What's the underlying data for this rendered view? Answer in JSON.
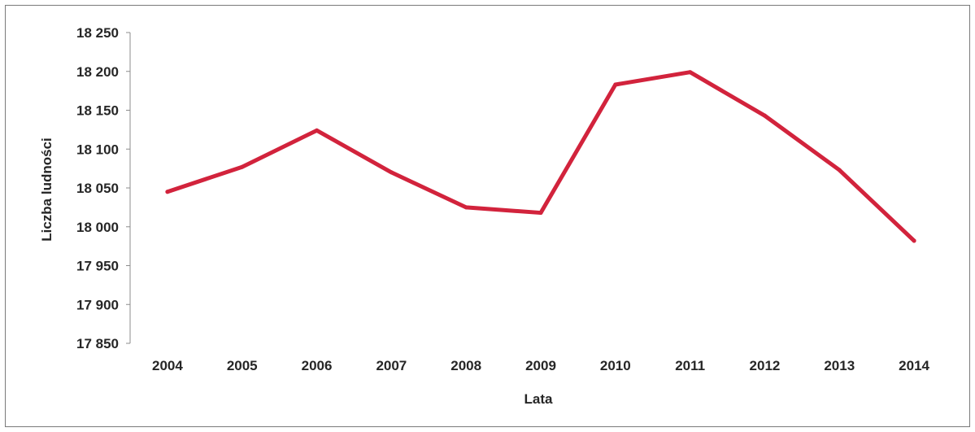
{
  "chart_data": {
    "type": "line",
    "title": "",
    "xlabel": "Lata",
    "ylabel": "Liczba ludności",
    "categories": [
      "2004",
      "2005",
      "2006",
      "2007",
      "2008",
      "2009",
      "2010",
      "2011",
      "2012",
      "2013",
      "2014"
    ],
    "series": [
      {
        "values": [
          18045,
          18077,
          18124,
          18070,
          18025,
          18018,
          18183,
          18199,
          18143,
          18073,
          17982
        ]
      }
    ],
    "ylim": [
      17850,
      18250
    ],
    "yticks": [
      17850,
      17900,
      17950,
      18000,
      18050,
      18100,
      18150,
      18200,
      18250
    ],
    "ytick_labels": [
      "17 850",
      "17 900",
      "17 950",
      "18 000",
      "18 050",
      "18 100",
      "18 150",
      "18 200",
      "18 250"
    ],
    "grid": false,
    "legend": "none",
    "colors": {
      "line": "#d2233c",
      "axis": "#8c8c8c",
      "text": "#262626"
    }
  }
}
